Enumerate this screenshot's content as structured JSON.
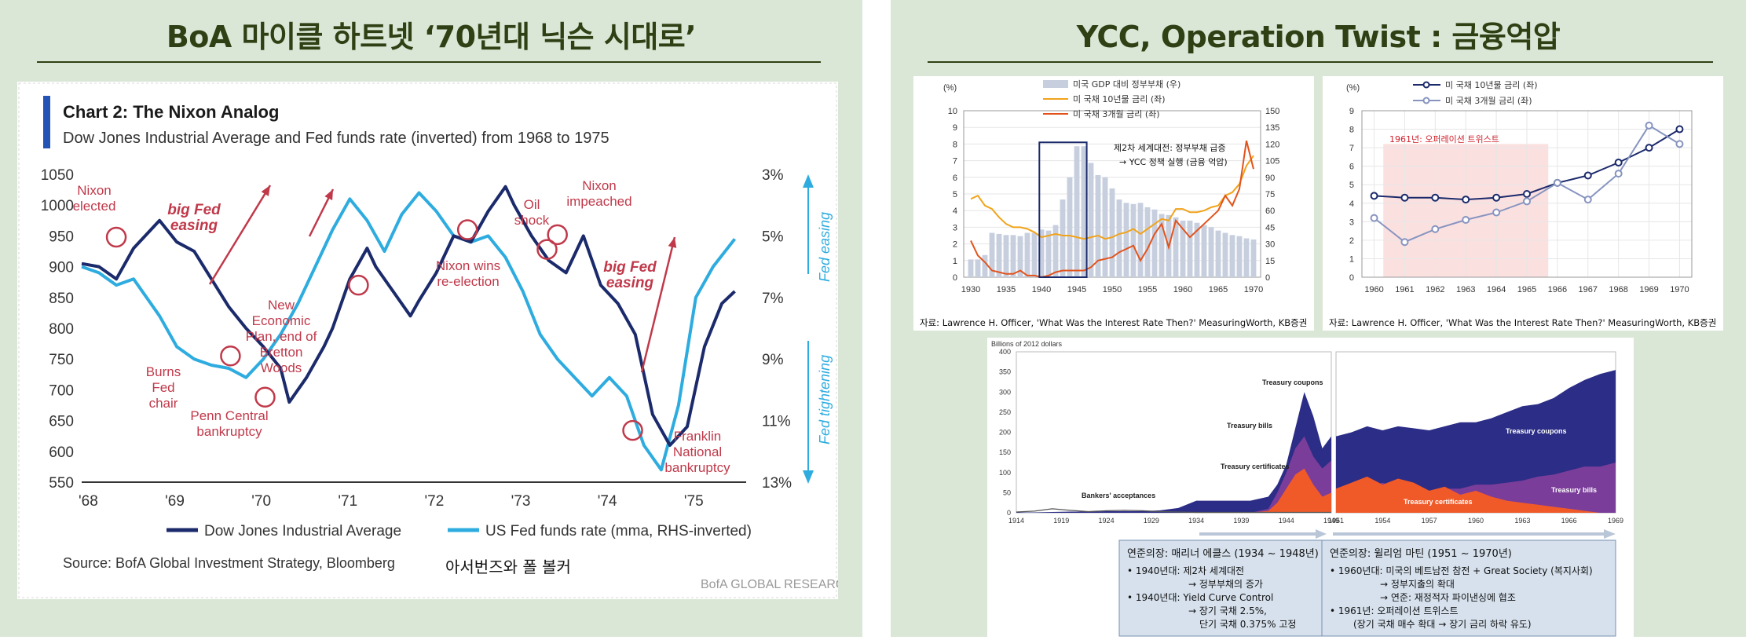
{
  "left": {
    "title": "BoA 마이클 하트넷 ‘70년대 닉슨 시대로’",
    "caption": "아서번즈와 폴 볼커",
    "footer": "BofA GLOBAL RESEARC"
  },
  "right": {
    "title": "YCC, Operation Twist : 금융억압",
    "source1": "자료: Lawrence H. Officer, 'What Was the Interest Rate Then?' MeasuringWorth, KB증권",
    "source2": "자료: Lawrence H. Officer, 'What Was the Interest Rate Then?' MeasuringWorth, KB증권",
    "box1": {
      "title": "연준의장: 매리너 에클스 (1934 ~ 1948년)",
      "lines": [
        "• 1940년대: 제2차 세계대전",
        "→ 정부부채의 증가",
        "• 1940년대: Yield Curve Control",
        "→ 장기 국채 2.5%,",
        "단기 국채 0.375% 고정"
      ]
    },
    "box2": {
      "title": "연준의장: 윌리엄 마틴 (1951 ~ 1970년)",
      "lines": [
        "• 1960년대: 미국의 베트남전 참전 + Great Society (복지사회)",
        "→ 정부지출의 확대",
        "→ 연준: 재정적자 파이낸싱에 협조",
        "• 1961년: 오퍼레이션 트위스트",
        "(장기 국채 매수 확대 → 장기 금리 하락 유도)"
      ]
    }
  },
  "chart_data": [
    {
      "id": "nixon",
      "type": "line",
      "title": "Chart 2: The Nixon Analog",
      "subtitle": "Dow Jones Industrial Average and Fed funds rate (inverted) from 1968 to 1975",
      "x_ticks": [
        "'68",
        "'69",
        "'70",
        "'71",
        "'72",
        "'73",
        "'74",
        "'75"
      ],
      "y_ticks": [
        1050,
        1000,
        950,
        900,
        850,
        800,
        750,
        700,
        650,
        600,
        550
      ],
      "y_right_ticks": [
        "3%",
        "5%",
        "7%",
        "9%",
        "11%",
        "13%"
      ],
      "y_right_values": [
        3,
        5,
        7,
        9,
        11,
        13
      ],
      "ylim": [
        550,
        1050
      ],
      "y2lim": [
        3,
        13
      ],
      "right_axis_labels": [
        "Fed easing",
        "Fed tightening"
      ],
      "series": [
        {
          "name": "Dow Jones Industrial Average",
          "color": "#1b2a6b",
          "axis": "left",
          "x": [
            1968.0,
            1968.2,
            1968.4,
            1968.6,
            1968.9,
            1969.1,
            1969.3,
            1969.5,
            1969.7,
            1969.9,
            1970.1,
            1970.3,
            1970.4,
            1970.6,
            1970.8,
            1970.9,
            1971.1,
            1971.3,
            1971.4,
            1971.6,
            1971.8,
            1971.9,
            1972.1,
            1972.3,
            1972.5,
            1972.7,
            1972.9,
            1973.0,
            1973.2,
            1973.4,
            1973.6,
            1973.8,
            1974.0,
            1974.2,
            1974.4,
            1974.6,
            1974.8,
            1975.0,
            1975.2,
            1975.4,
            1975.55
          ],
          "y": [
            905,
            900,
            880,
            930,
            975,
            940,
            925,
            880,
            835,
            800,
            770,
            735,
            680,
            720,
            770,
            800,
            880,
            930,
            900,
            860,
            820,
            845,
            890,
            950,
            940,
            990,
            1030,
            1000,
            950,
            910,
            890,
            950,
            870,
            840,
            790,
            660,
            610,
            640,
            770,
            840,
            860
          ]
        },
        {
          "name": "US Fed funds rate (mma, RHS-inverted)",
          "color": "#2eacdf",
          "axis": "right",
          "x": [
            1968.0,
            1968.2,
            1968.4,
            1968.6,
            1968.9,
            1969.1,
            1969.3,
            1969.5,
            1969.7,
            1969.9,
            1970.1,
            1970.3,
            1970.5,
            1970.7,
            1970.9,
            1971.1,
            1971.3,
            1971.5,
            1971.7,
            1971.9,
            1972.1,
            1972.3,
            1972.5,
            1972.7,
            1972.9,
            1973.1,
            1973.3,
            1973.5,
            1973.7,
            1973.9,
            1974.1,
            1974.3,
            1974.5,
            1974.7,
            1974.9,
            1975.1,
            1975.3,
            1975.55
          ],
          "y": [
            6.0,
            6.2,
            6.6,
            6.4,
            7.6,
            8.6,
            9.0,
            9.2,
            9.3,
            9.6,
            9.0,
            8.2,
            7.2,
            6.0,
            4.8,
            3.8,
            4.5,
            5.5,
            4.3,
            3.6,
            4.2,
            5.0,
            5.2,
            5.0,
            5.7,
            6.8,
            8.2,
            9.0,
            9.6,
            10.2,
            9.6,
            10.2,
            11.8,
            12.6,
            10.5,
            7.0,
            6.0,
            5.1
          ]
        }
      ],
      "legend": [
        "Dow Jones Industrial Average",
        "US Fed funds rate (mma, RHS-inverted)"
      ],
      "annotations": {
        "nixon_elected": "Nixon elected",
        "big_fed_easing_1": "big Fed easing",
        "burns_fed_chair": "Burns Fed chair",
        "penn_central": "Penn Central bankruptcy",
        "new_economic_plan": "New Economic Plan, end of Bretton Woods",
        "nixon_wins": "Nixon wins re-election",
        "oil_shock": "Oil shock",
        "nixon_impeached": "Nixon impeached",
        "big_fed_easing_2": "big Fed easing",
        "franklin_national": "Franklin National bankruptcy"
      },
      "source": "Source: BofA Global Investment Strategy, Bloomberg"
    },
    {
      "id": "ycc",
      "type": "bar+line",
      "ylabel_left": "(%)",
      "y_ticks": [
        0,
        1,
        2,
        3,
        4,
        5,
        6,
        7,
        8,
        9,
        10
      ],
      "y_right_ticks": [
        0,
        15,
        30,
        45,
        60,
        75,
        90,
        105,
        120,
        135,
        150
      ],
      "x_ticks": [
        1930,
        1935,
        1940,
        1945,
        1950,
        1955,
        1960,
        1965,
        1970
      ],
      "legend": [
        "미국 GDP 대비 정부부채 (우)",
        "미 국채 10년물 금리 (좌)",
        "미 국채 3개월 금리 (좌)"
      ],
      "annotation": "제2차 세계대전: 정부부채 급증",
      "annotation2": "→ YCC 정책 실행 (금융 억압)",
      "debt": {
        "x": [
          1930,
          1931,
          1932,
          1933,
          1934,
          1935,
          1936,
          1937,
          1938,
          1939,
          1940,
          1941,
          1942,
          1943,
          1944,
          1945,
          1946,
          1947,
          1948,
          1949,
          1950,
          1951,
          1952,
          1953,
          1954,
          1955,
          1956,
          1957,
          1958,
          1959,
          1960,
          1961,
          1962,
          1963,
          1964,
          1965,
          1966,
          1967,
          1968,
          1969,
          1970
        ],
        "y": [
          16,
          16,
          20,
          40,
          39,
          38,
          38,
          37,
          40,
          40,
          43,
          42,
          47,
          70,
          90,
          118,
          118,
          103,
          92,
          90,
          80,
          70,
          67,
          66,
          67,
          63,
          61,
          57,
          56,
          54,
          51,
          51,
          49,
          47,
          45,
          42,
          40,
          38,
          37,
          35,
          34
        ]
      },
      "series": [
        {
          "name": "미 국채 10년물 금리 (좌)",
          "color": "#f1a31b",
          "x": [
            1930,
            1931,
            1932,
            1933,
            1934,
            1935,
            1936,
            1937,
            1938,
            1939,
            1940,
            1941,
            1942,
            1943,
            1944,
            1945,
            1946,
            1947,
            1948,
            1949,
            1950,
            1951,
            1952,
            1953,
            1954,
            1955,
            1956,
            1957,
            1958,
            1959,
            1960,
            1961,
            1962,
            1963,
            1964,
            1965,
            1966,
            1967,
            1968,
            1969,
            1970
          ],
          "y": [
            4.7,
            4.9,
            4.3,
            4.1,
            3.6,
            3.2,
            3.0,
            3.0,
            2.9,
            2.7,
            2.4,
            2.5,
            2.6,
            2.5,
            2.5,
            2.4,
            2.3,
            2.4,
            2.5,
            2.3,
            2.4,
            2.6,
            2.7,
            2.9,
            2.6,
            2.9,
            3.2,
            3.5,
            3.4,
            4.1,
            4.1,
            3.9,
            3.9,
            4.0,
            4.2,
            4.3,
            4.9,
            5.1,
            5.6,
            6.7,
            7.3
          ]
        },
        {
          "name": "미 국채 3개월 금리 (좌)",
          "color": "#e2531c",
          "x": [
            1930,
            1931,
            1932,
            1933,
            1934,
            1935,
            1936,
            1937,
            1938,
            1939,
            1940,
            1941,
            1942,
            1943,
            1944,
            1945,
            1946,
            1947,
            1948,
            1949,
            1950,
            1951,
            1952,
            1953,
            1954,
            1955,
            1956,
            1957,
            1958,
            1959,
            1960,
            1961,
            1962,
            1963,
            1964,
            1965,
            1966,
            1967,
            1968,
            1969,
            1970
          ],
          "y": [
            2.2,
            1.3,
            0.9,
            0.4,
            0.3,
            0.2,
            0.2,
            0.4,
            0.1,
            0.1,
            0.0,
            0.1,
            0.3,
            0.4,
            0.4,
            0.4,
            0.4,
            0.6,
            1.0,
            1.1,
            1.2,
            1.5,
            1.7,
            1.9,
            1.0,
            1.7,
            2.6,
            3.2,
            1.8,
            3.4,
            2.9,
            2.4,
            2.8,
            3.2,
            3.6,
            4.0,
            4.9,
            4.3,
            5.3,
            8.2,
            6.5
          ]
        }
      ]
    },
    {
      "id": "twist",
      "type": "line",
      "ylabel_left": "(%)",
      "y_ticks": [
        0,
        1,
        2,
        3,
        4,
        5,
        6,
        7,
        8,
        9
      ],
      "x_ticks": [
        1960,
        1961,
        1962,
        1963,
        1964,
        1965,
        1966,
        1967,
        1968,
        1969,
        1970
      ],
      "legend": [
        "미 국채 10년물 금리 (좌)",
        "미 국채 3개월 금리 (좌)"
      ],
      "annotation": "1961년: 오퍼레이션 트위스트",
      "series": [
        {
          "name": "미 국채 10년물 금리 (좌)",
          "color": "#1b2a6b",
          "x": [
            1960,
            1961,
            1962,
            1963,
            1964,
            1965,
            1966,
            1967,
            1968,
            1969,
            1970
          ],
          "y": [
            4.4,
            4.3,
            4.3,
            4.2,
            4.3,
            4.5,
            5.1,
            5.5,
            6.2,
            7.0,
            8.0
          ]
        },
        {
          "name": "미 국채 3개월 금리 (좌)",
          "color": "#8794c0",
          "x": [
            1960,
            1961,
            1962,
            1963,
            1964,
            1965,
            1966,
            1967,
            1968,
            1969,
            1970
          ],
          "y": [
            3.2,
            1.9,
            2.6,
            3.1,
            3.5,
            4.1,
            5.1,
            4.2,
            5.6,
            8.2,
            7.2
          ]
        }
      ]
    },
    {
      "id": "holdings",
      "type": "area",
      "ylabel": "Billions of 2012 dollars",
      "y_ticks": [
        0,
        50,
        100,
        150,
        200,
        250,
        300,
        350,
        400
      ],
      "x_ticks_left": [
        1914,
        1919,
        1924,
        1929,
        1934,
        1939,
        1944,
        1949
      ],
      "x_ticks_right": [
        1951,
        1954,
        1957,
        1960,
        1963,
        1966,
        1969
      ],
      "labels": [
        "Treasury coupons",
        "Treasury bills",
        "Treasury certificates",
        "Bankers' acceptances",
        "Treasury coupons",
        "Treasury bills",
        "Treasury certificates"
      ],
      "left": {
        "x": [
          1914,
          1916,
          1918,
          1920,
          1922,
          1924,
          1926,
          1928,
          1930,
          1932,
          1934,
          1936,
          1938,
          1940,
          1942,
          1943,
          1944,
          1945,
          1946,
          1947,
          1948,
          1949
        ],
        "coupons": [
          1,
          1,
          2,
          3,
          3,
          4,
          4,
          4,
          6,
          12,
          30,
          30,
          30,
          30,
          40,
          70,
          120,
          210,
          300,
          240,
          160,
          190
        ],
        "bills": [
          0,
          0,
          0,
          0,
          0,
          0,
          0,
          0,
          0,
          0,
          0,
          0,
          0,
          0,
          10,
          50,
          100,
          160,
          190,
          140,
          110,
          130
        ],
        "certificates": [
          0,
          0,
          0,
          0,
          0,
          0,
          0,
          0,
          0,
          0,
          0,
          0,
          0,
          0,
          5,
          25,
          60,
          95,
          110,
          70,
          40,
          50
        ],
        "acceptances": [
          2,
          4,
          10,
          6,
          3,
          5,
          6,
          5,
          3,
          2,
          1,
          1,
          1,
          1,
          1,
          1,
          1,
          1,
          1,
          1,
          1,
          1
        ]
      },
      "right": {
        "x": [
          1951,
          1952,
          1953,
          1954,
          1955,
          1956,
          1957,
          1958,
          1959,
          1960,
          1961,
          1962,
          1963,
          1964,
          1965,
          1966,
          1967,
          1968,
          1969
        ],
        "total": [
          190,
          200,
          215,
          205,
          215,
          210,
          205,
          215,
          225,
          225,
          235,
          250,
          265,
          270,
          285,
          310,
          330,
          345,
          355
        ],
        "bills": [
          40,
          50,
          65,
          75,
          60,
          55,
          55,
          60,
          60,
          70,
          70,
          75,
          80,
          90,
          95,
          105,
          115,
          115,
          125
        ],
        "certificates": [
          60,
          75,
          90,
          70,
          85,
          75,
          55,
          65,
          45,
          55,
          40,
          30,
          25,
          20,
          15,
          10,
          5,
          0,
          0
        ]
      }
    }
  ]
}
